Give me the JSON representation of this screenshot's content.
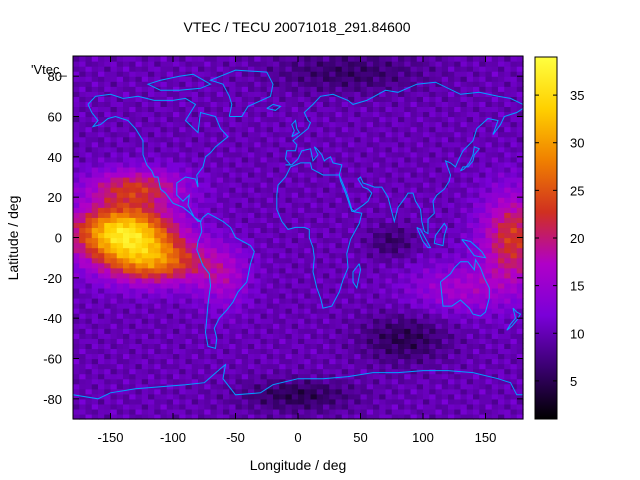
{
  "chart_data": {
    "type": "heatmap",
    "title": "VTEC / TECU 20071018_291.84600",
    "xlabel": "Longitude / deg",
    "ylabel": "Latitude / deg",
    "xlim": [
      -180,
      180
    ],
    "ylim": [
      -90,
      90
    ],
    "x_ticks": [
      -150,
      -100,
      -50,
      0,
      50,
      100,
      150
    ],
    "y_ticks": [
      -80,
      -60,
      -40,
      -20,
      0,
      20,
      40,
      60,
      80
    ],
    "legend_label": "'Vtec_",
    "colorbar": {
      "range": [
        1,
        39
      ],
      "ticks": [
        5,
        10,
        15,
        20,
        25,
        30,
        35
      ],
      "colormap": [
        "#000000",
        "#3a0070",
        "#7a00d8",
        "#b000c8",
        "#d03020",
        "#f08000",
        "#ffd000",
        "#ffff40"
      ]
    },
    "grid": false,
    "cell_size_deg": [
      5,
      2.5
    ],
    "field_peaks": [
      {
        "name": "equatorial Pacific maximum",
        "lon": -140,
        "lat": 3,
        "value": 38
      },
      {
        "name": "western Pacific anomaly",
        "lon": 170,
        "lat": 0,
        "value": 28
      },
      {
        "name": "Pacific southern crest",
        "lon": -115,
        "lat": -10,
        "value": 28
      },
      {
        "name": "northern crest",
        "lon": -130,
        "lat": 25,
        "value": 26
      }
    ]
  },
  "colors": {
    "coastline": "#00a0ff",
    "frame": "#000000"
  }
}
